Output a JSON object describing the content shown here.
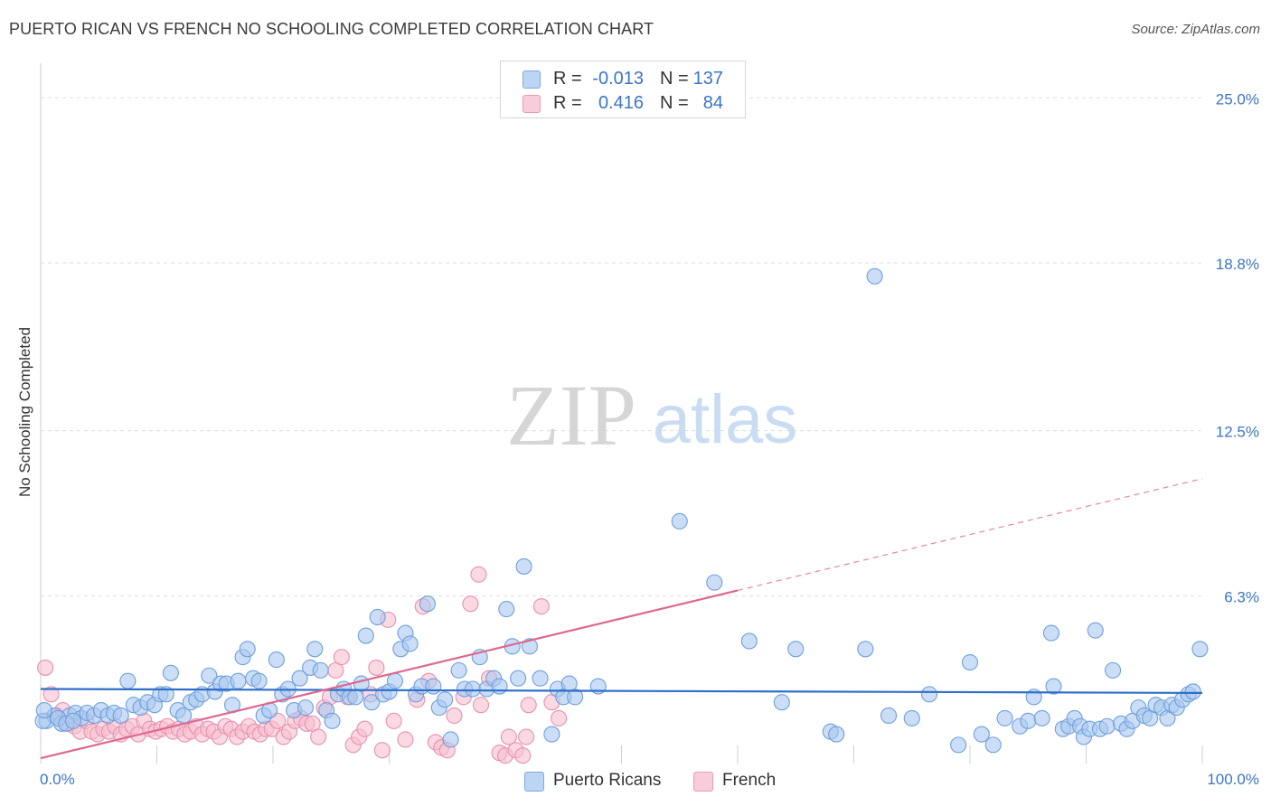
{
  "header": {
    "title": "PUERTO RICAN VS FRENCH NO SCHOOLING COMPLETED CORRELATION CHART",
    "source": "Source: ZipAtlas.com"
  },
  "watermark": {
    "zip": "ZIP",
    "atlas": "atlas"
  },
  "legend": {
    "rows": [
      {
        "r_label": "R =",
        "r_value": "-0.013",
        "n_label": "N =",
        "n_value": "137"
      },
      {
        "r_label": "R =",
        "r_value": "0.416",
        "n_label": "N =",
        "n_value": "84"
      }
    ],
    "bottom": [
      "Puerto Ricans",
      "French"
    ]
  },
  "colors": {
    "blue_fill": "#a9c8f0",
    "blue_stroke": "#6f9fdc",
    "blue_line": "#2e6fcb",
    "pink_fill": "#f6bfd0",
    "pink_stroke": "#e890ad",
    "pink_line": "#e0668f",
    "axis_text": "#3b74c8",
    "grid": "#dddddd"
  },
  "chart_data": {
    "type": "scatter",
    "title": "PUERTO RICAN VS FRENCH NO SCHOOLING COMPLETED CORRELATION CHART",
    "xlabel": "",
    "ylabel": "No Schooling Completed",
    "xlim": [
      0,
      100
    ],
    "ylim": [
      0,
      26.3
    ],
    "x_tick_labels": [
      "0.0%",
      "100.0%"
    ],
    "y_ticks": [
      6.3,
      12.5,
      18.8,
      25.0
    ],
    "y_tick_labels": [
      "6.3%",
      "12.5%",
      "18.8%",
      "25.0%"
    ],
    "grid": true,
    "legend_position": "top-center",
    "series": [
      {
        "name": "Puerto Ricans",
        "trend": {
          "x": [
            0,
            100
          ],
          "y": [
            2.8,
            2.65
          ],
          "dashed_from": null
        },
        "points": [
          [
            0.5,
            1.6
          ],
          [
            1.2,
            1.8
          ],
          [
            1.8,
            1.5
          ],
          [
            2.5,
            1.8
          ],
          [
            3.0,
            1.9
          ],
          [
            3.5,
            1.7
          ],
          [
            4.0,
            1.9
          ],
          [
            4.6,
            1.8
          ],
          [
            5.2,
            2.0
          ],
          [
            5.8,
            1.8
          ],
          [
            6.3,
            1.9
          ],
          [
            6.9,
            1.8
          ],
          [
            7.5,
            3.1
          ],
          [
            8.0,
            2.2
          ],
          [
            8.6,
            2.1
          ],
          [
            9.2,
            2.3
          ],
          [
            9.8,
            2.2
          ],
          [
            10.3,
            2.6
          ],
          [
            10.8,
            2.6
          ],
          [
            11.2,
            3.4
          ],
          [
            11.8,
            2.0
          ],
          [
            12.3,
            1.8
          ],
          [
            12.9,
            2.3
          ],
          [
            13.4,
            2.4
          ],
          [
            13.9,
            2.6
          ],
          [
            14.5,
            3.3
          ],
          [
            15.0,
            2.7
          ],
          [
            15.5,
            3.0
          ],
          [
            16.0,
            3.0
          ],
          [
            16.5,
            2.2
          ],
          [
            17.0,
            3.1
          ],
          [
            17.4,
            4.0
          ],
          [
            17.8,
            4.3
          ],
          [
            18.3,
            3.2
          ],
          [
            18.8,
            3.1
          ],
          [
            19.2,
            1.8
          ],
          [
            19.7,
            2.0
          ],
          [
            20.3,
            3.9
          ],
          [
            20.8,
            2.6
          ],
          [
            21.3,
            2.8
          ],
          [
            21.8,
            2.0
          ],
          [
            22.3,
            3.2
          ],
          [
            22.8,
            2.1
          ],
          [
            23.2,
            3.6
          ],
          [
            23.6,
            4.3
          ],
          [
            24.1,
            3.5
          ],
          [
            24.6,
            2.0
          ],
          [
            25.1,
            1.6
          ],
          [
            25.6,
            2.6
          ],
          [
            26.1,
            2.8
          ],
          [
            26.6,
            2.5
          ],
          [
            27.1,
            2.5
          ],
          [
            27.6,
            3.0
          ],
          [
            28.0,
            4.8
          ],
          [
            28.5,
            2.3
          ],
          [
            29.0,
            5.5
          ],
          [
            29.5,
            2.6
          ],
          [
            30.0,
            2.7
          ],
          [
            30.5,
            3.1
          ],
          [
            31.0,
            4.3
          ],
          [
            31.4,
            4.9
          ],
          [
            31.8,
            4.5
          ],
          [
            32.3,
            2.6
          ],
          [
            32.8,
            2.9
          ],
          [
            33.3,
            6.0
          ],
          [
            33.8,
            2.9
          ],
          [
            34.3,
            2.1
          ],
          [
            34.8,
            2.4
          ],
          [
            35.3,
            0.9
          ],
          [
            36.0,
            3.5
          ],
          [
            36.5,
            2.8
          ],
          [
            37.2,
            2.8
          ],
          [
            37.8,
            4.0
          ],
          [
            38.4,
            2.8
          ],
          [
            39.0,
            3.2
          ],
          [
            39.5,
            2.9
          ],
          [
            40.1,
            5.8
          ],
          [
            40.6,
            4.4
          ],
          [
            41.1,
            3.2
          ],
          [
            41.6,
            7.4
          ],
          [
            42.1,
            4.4
          ],
          [
            43.0,
            3.2
          ],
          [
            44.0,
            1.1
          ],
          [
            44.5,
            2.8
          ],
          [
            45.0,
            2.5
          ],
          [
            45.5,
            3.0
          ],
          [
            46.0,
            2.5
          ],
          [
            48.0,
            2.9
          ],
          [
            55.0,
            9.1
          ],
          [
            58.0,
            6.8
          ],
          [
            61.0,
            4.6
          ],
          [
            63.8,
            2.3
          ],
          [
            65.0,
            4.3
          ],
          [
            68.0,
            1.2
          ],
          [
            68.5,
            1.1
          ],
          [
            71.0,
            4.3
          ],
          [
            71.8,
            18.3
          ],
          [
            73.0,
            1.8
          ],
          [
            75.0,
            1.7
          ],
          [
            76.5,
            2.6
          ],
          [
            79.0,
            0.7
          ],
          [
            80.0,
            3.8
          ],
          [
            81.0,
            1.1
          ],
          [
            82.0,
            0.7
          ],
          [
            83.0,
            1.7
          ],
          [
            84.3,
            1.4
          ],
          [
            85.0,
            1.6
          ],
          [
            85.5,
            2.5
          ],
          [
            86.2,
            1.7
          ],
          [
            87.0,
            4.9
          ],
          [
            87.2,
            2.9
          ],
          [
            88.0,
            1.3
          ],
          [
            88.5,
            1.4
          ],
          [
            89.0,
            1.7
          ],
          [
            89.5,
            1.4
          ],
          [
            89.8,
            1.0
          ],
          [
            90.3,
            1.3
          ],
          [
            90.8,
            5.0
          ],
          [
            91.2,
            1.3
          ],
          [
            91.8,
            1.4
          ],
          [
            92.3,
            3.5
          ],
          [
            93.0,
            1.5
          ],
          [
            93.5,
            1.3
          ],
          [
            94.0,
            1.6
          ],
          [
            94.5,
            2.1
          ],
          [
            95.0,
            1.8
          ],
          [
            95.5,
            1.7
          ],
          [
            96.0,
            2.2
          ],
          [
            96.5,
            2.1
          ],
          [
            97.0,
            1.7
          ],
          [
            97.4,
            2.2
          ],
          [
            97.8,
            2.1
          ],
          [
            98.3,
            2.4
          ],
          [
            98.8,
            2.6
          ],
          [
            99.2,
            2.7
          ],
          [
            99.8,
            4.3
          ],
          [
            0.2,
            1.6
          ],
          [
            0.3,
            2.0
          ],
          [
            1.5,
            1.7
          ],
          [
            2.2,
            1.5
          ],
          [
            2.8,
            1.6
          ]
        ]
      },
      {
        "name": "French",
        "trend": {
          "x": [
            0,
            100
          ],
          "y": [
            0.2,
            10.7
          ],
          "dashed_from": 60
        },
        "points": [
          [
            0.4,
            3.6
          ],
          [
            0.9,
            2.6
          ],
          [
            1.4,
            1.8
          ],
          [
            1.9,
            2.0
          ],
          [
            2.4,
            1.5
          ],
          [
            2.9,
            1.4
          ],
          [
            3.4,
            1.2
          ],
          [
            3.9,
            1.6
          ],
          [
            4.4,
            1.2
          ],
          [
            4.9,
            1.1
          ],
          [
            5.4,
            1.3
          ],
          [
            5.9,
            1.2
          ],
          [
            6.4,
            1.4
          ],
          [
            6.9,
            1.1
          ],
          [
            7.4,
            1.3
          ],
          [
            7.9,
            1.4
          ],
          [
            8.4,
            1.1
          ],
          [
            8.9,
            1.6
          ],
          [
            9.4,
            1.3
          ],
          [
            9.9,
            1.2
          ],
          [
            10.4,
            1.3
          ],
          [
            10.9,
            1.4
          ],
          [
            11.4,
            1.2
          ],
          [
            11.9,
            1.3
          ],
          [
            12.4,
            1.1
          ],
          [
            12.9,
            1.2
          ],
          [
            13.4,
            1.4
          ],
          [
            13.9,
            1.1
          ],
          [
            14.4,
            1.3
          ],
          [
            14.9,
            1.2
          ],
          [
            15.4,
            1.0
          ],
          [
            15.9,
            1.4
          ],
          [
            16.4,
            1.3
          ],
          [
            16.9,
            1.0
          ],
          [
            17.4,
            1.2
          ],
          [
            17.9,
            1.4
          ],
          [
            18.4,
            1.2
          ],
          [
            18.9,
            1.1
          ],
          [
            19.4,
            1.3
          ],
          [
            19.9,
            1.3
          ],
          [
            20.4,
            1.6
          ],
          [
            20.9,
            1.0
          ],
          [
            21.4,
            1.2
          ],
          [
            21.9,
            1.6
          ],
          [
            22.4,
            1.7
          ],
          [
            22.9,
            1.5
          ],
          [
            23.4,
            1.5
          ],
          [
            23.9,
            1.0
          ],
          [
            24.4,
            2.1
          ],
          [
            24.9,
            2.5
          ],
          [
            25.4,
            3.5
          ],
          [
            25.9,
            4.0
          ],
          [
            26.4,
            2.5
          ],
          [
            26.9,
            0.7
          ],
          [
            27.4,
            1.0
          ],
          [
            27.9,
            1.3
          ],
          [
            28.4,
            2.6
          ],
          [
            28.9,
            3.6
          ],
          [
            29.4,
            0.5
          ],
          [
            29.9,
            5.4
          ],
          [
            30.4,
            1.6
          ],
          [
            31.4,
            0.9
          ],
          [
            32.4,
            2.4
          ],
          [
            32.9,
            5.9
          ],
          [
            33.4,
            3.1
          ],
          [
            34.0,
            0.8
          ],
          [
            34.5,
            0.6
          ],
          [
            35.0,
            0.5
          ],
          [
            35.6,
            1.8
          ],
          [
            36.4,
            2.5
          ],
          [
            37.0,
            6.0
          ],
          [
            37.7,
            7.1
          ],
          [
            37.9,
            2.2
          ],
          [
            38.6,
            3.2
          ],
          [
            39.5,
            0.4
          ],
          [
            40.0,
            0.3
          ],
          [
            40.3,
            1.0
          ],
          [
            40.9,
            0.5
          ],
          [
            41.5,
            0.3
          ],
          [
            41.8,
            1.0
          ],
          [
            42.0,
            2.2
          ],
          [
            43.1,
            5.9
          ],
          [
            44.0,
            2.3
          ],
          [
            44.6,
            1.7
          ]
        ]
      }
    ],
    "extra_points_note": ""
  }
}
